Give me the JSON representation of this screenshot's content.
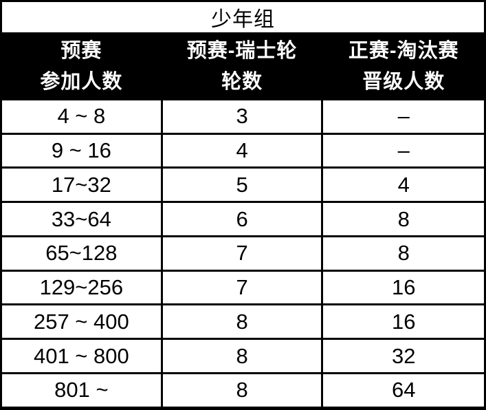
{
  "table": {
    "title": "少年组",
    "columns": [
      {
        "line1": "预赛",
        "line2": "参加人数"
      },
      {
        "line1": "预赛-瑞士轮",
        "line2": "轮数"
      },
      {
        "line1": "正赛-淘汰赛",
        "line2": "晋级人数"
      }
    ],
    "rows": [
      [
        "4 ~ 8",
        "3",
        "–"
      ],
      [
        "9 ~ 16",
        "4",
        "–"
      ],
      [
        "17~32",
        "5",
        "4"
      ],
      [
        "33~64",
        "6",
        "8"
      ],
      [
        "65~128",
        "7",
        "8"
      ],
      [
        "129~256",
        "7",
        "16"
      ],
      [
        "257 ~ 400",
        "8",
        "16"
      ],
      [
        "401 ~ 800",
        "8",
        "32"
      ],
      [
        "801 ~",
        "8",
        "64"
      ]
    ],
    "colors": {
      "header_bg": "#000000",
      "header_text": "#ffffff",
      "body_bg": "#ffffff",
      "body_text": "#000000",
      "border": "#000000"
    }
  }
}
